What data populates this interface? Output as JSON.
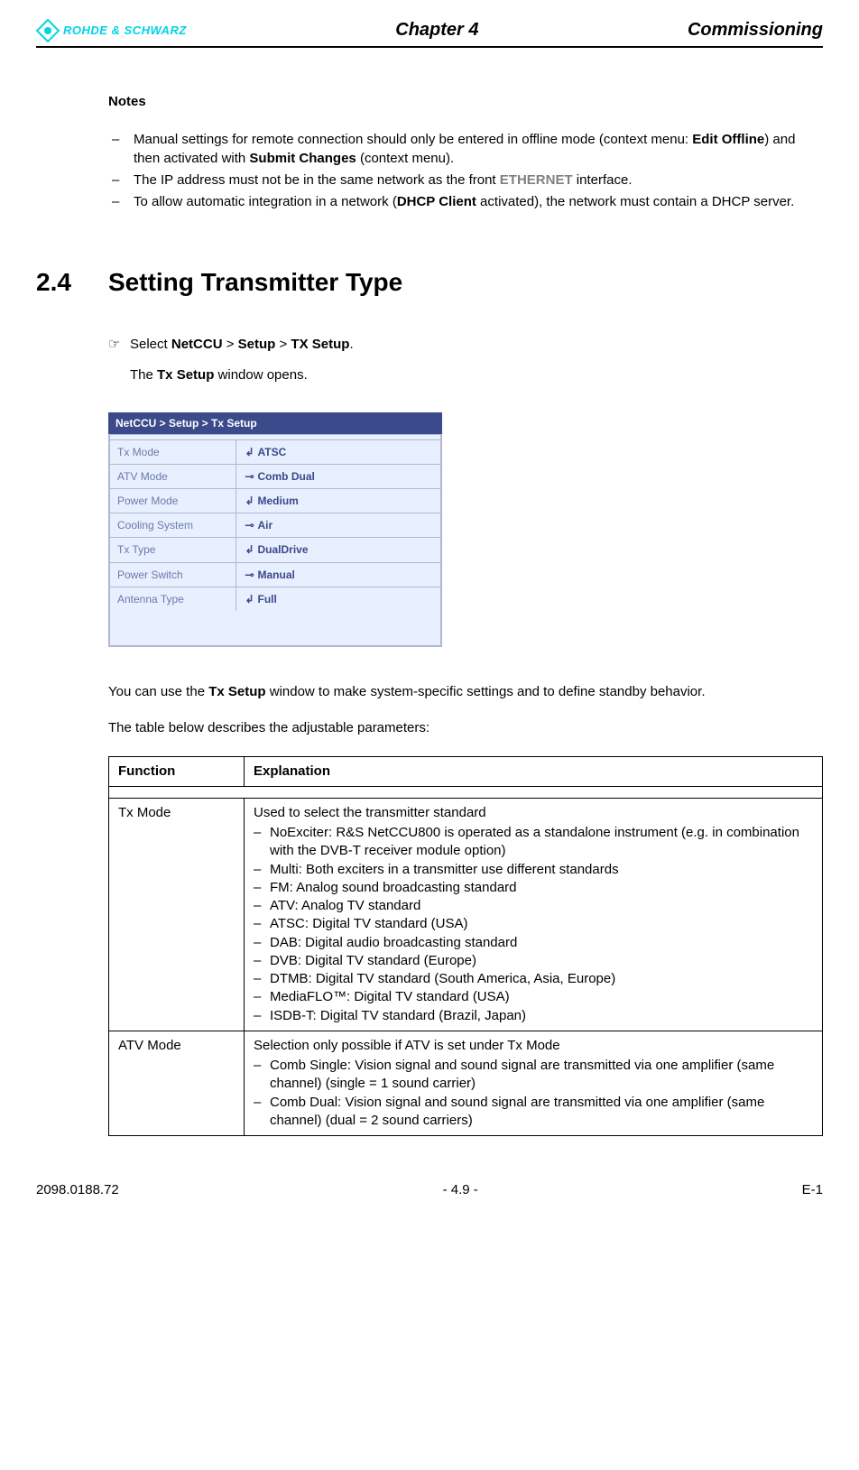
{
  "header": {
    "logo_text": "ROHDE & SCHWARZ",
    "chapter": "Chapter 4",
    "right": "Commissioning"
  },
  "notes": {
    "heading": "Notes",
    "items": [
      {
        "pre": "Manual settings for remote connection should only be entered in offline mode (context menu: ",
        "b1": "Edit Offline",
        "mid": ") and then activated with ",
        "b2": "Submit Changes",
        "post": " (context menu)."
      },
      {
        "pre": "The IP address must not be in the same network as the front ",
        "gray": "ETHERNET",
        "post": " interface."
      },
      {
        "pre": "To allow automatic integration in a network (",
        "b1": "DHCP Client",
        "mid": " activated), the network must contain a DHCP server.",
        "b2": "",
        "post": ""
      }
    ]
  },
  "section": {
    "num": "2.4",
    "title": "Setting Transmitter Type"
  },
  "step": {
    "prefix": "Select ",
    "p1": "NetCCU",
    "sep1": " > ",
    "p2": "Setup",
    "sep2": " > ",
    "p3": "TX Setup",
    "suffix": "."
  },
  "window_opens": {
    "pre": "The ",
    "b": "Tx Setup",
    "post": " window opens."
  },
  "screenshot": {
    "titlebar": "NetCCU  > Setup > Tx Setup",
    "rows": [
      {
        "label": "Tx Mode",
        "icon": "↲",
        "value": "ATSC"
      },
      {
        "label": "ATV Mode",
        "icon": "⊸",
        "value": "Comb Dual"
      },
      {
        "label": "Power Mode",
        "icon": "↲",
        "value": "Medium"
      },
      {
        "label": "Cooling System",
        "icon": "⊸",
        "value": "Air"
      },
      {
        "label": "Tx Type",
        "icon": "↲",
        "value": "DualDrive"
      },
      {
        "label": "Power Switch",
        "icon": "⊸",
        "value": "Manual"
      },
      {
        "label": "Antenna Type",
        "icon": "↲",
        "value": "Full"
      }
    ],
    "colors": {
      "titlebar_bg": "#3b4a8a",
      "titlebar_fg": "#ffffff",
      "body_bg": "#e8efff",
      "border": "#b0b8d0",
      "label_fg": "#6a7aa8",
      "value_fg": "#3b4a8a"
    }
  },
  "after_ss": {
    "pre": "You can use the ",
    "b": "Tx Setup",
    "post": " window to make system-specific settings and to define standby behavior."
  },
  "table_intro": "The table below describes the adjustable parameters:",
  "param_table": {
    "headers": [
      "Function",
      "Explanation"
    ],
    "rows": [
      {
        "func": "Tx Mode",
        "intro": "Used to select the transmitter standard",
        "items": [
          "NoExciter: R&S NetCCU800 is operated as a standalone instrument (e.g. in combination with the DVB-T receiver module option)",
          "Multi: Both exciters in a transmitter use different standards",
          "FM: Analog sound broadcasting standard",
          "ATV: Analog TV standard",
          "ATSC: Digital TV standard (USA)",
          "DAB: Digital audio broadcasting standard",
          "DVB: Digital TV standard (Europe)",
          "DTMB: Digital TV standard (South America, Asia, Europe)",
          "MediaFLO™: Digital TV standard (USA)",
          "ISDB-T: Digital TV standard (Brazil, Japan)"
        ]
      },
      {
        "func": "ATV Mode",
        "intro": "Selection only possible if ATV is set under Tx Mode",
        "items": [
          "Comb Single: Vision signal and sound signal are transmitted via one amplifier (same channel) (single = 1 sound carrier)",
          "Comb Dual: Vision signal and sound signal are transmitted via one amplifier (same channel) (dual = 2 sound carriers)"
        ]
      }
    ]
  },
  "footer": {
    "left": "2098.0188.72",
    "center": "- 4.9 -",
    "right": "E-1"
  }
}
